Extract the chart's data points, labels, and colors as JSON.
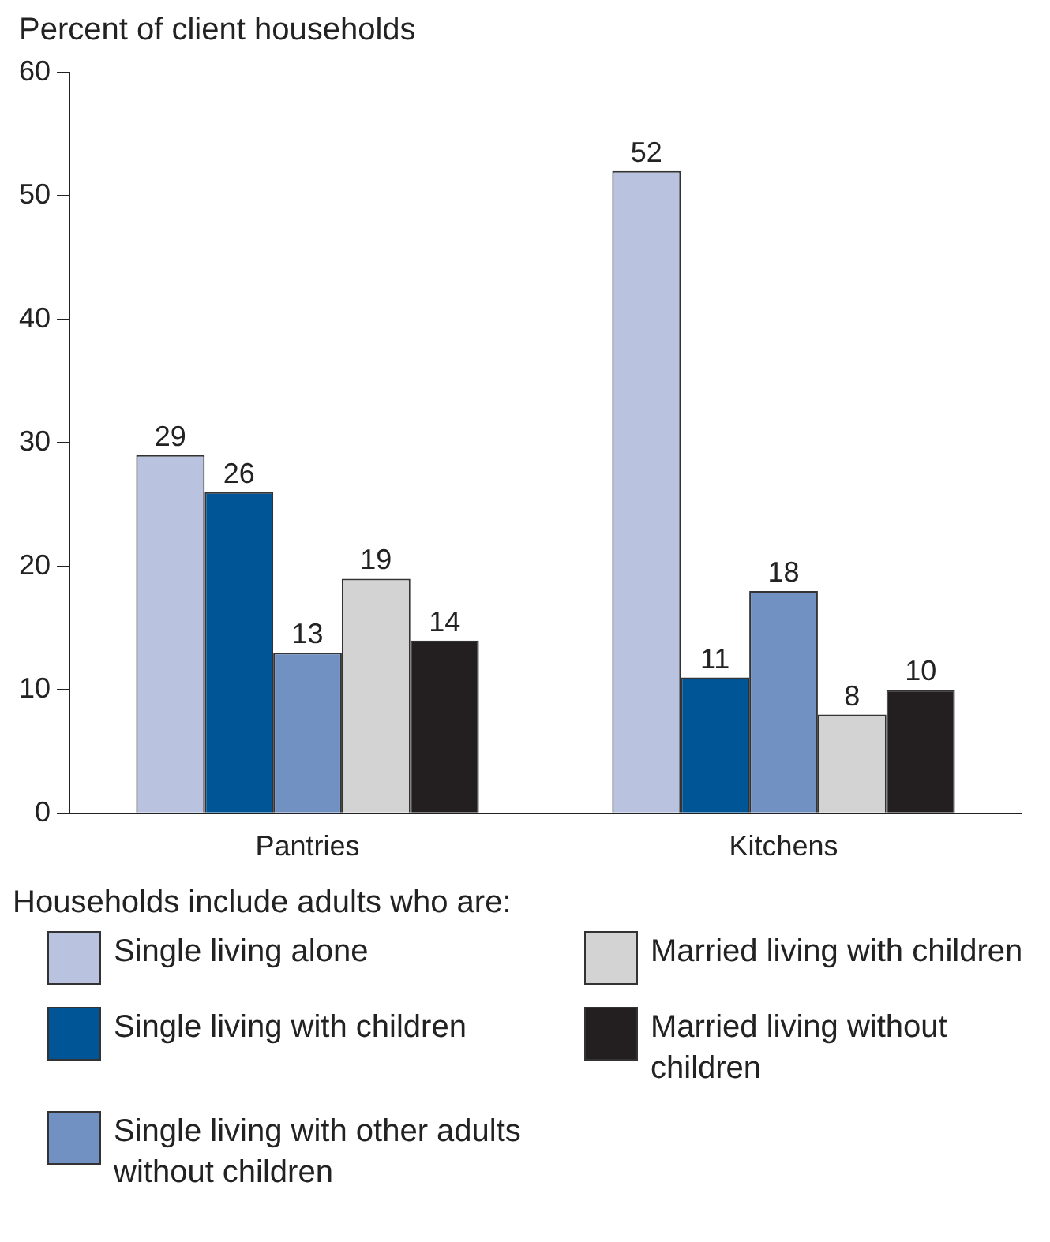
{
  "chart_data": {
    "type": "bar",
    "ylabel": "Percent of client households",
    "legend_title": "Households include adults who are:",
    "categories": [
      "Pantries",
      "Kitchens"
    ],
    "series": [
      {
        "name": "Single living alone",
        "color": "#b9c3e0",
        "values": [
          29,
          52
        ]
      },
      {
        "name": "Single living with children",
        "color": "#005596",
        "values": [
          26,
          11
        ]
      },
      {
        "name": "Single living with other adults without children",
        "color": "#7191c3",
        "values": [
          13,
          18
        ]
      },
      {
        "name": "Married living with children",
        "color": "#d3d3d3",
        "values": [
          19,
          8
        ]
      },
      {
        "name": "Married living without children",
        "color": "#231f20",
        "values": [
          14,
          10
        ]
      }
    ],
    "ylim": [
      0,
      60
    ],
    "yticks": [
      0,
      10,
      20,
      30,
      40,
      50,
      60
    ],
    "grid": false,
    "legend": "bottom",
    "data_labels": true
  }
}
